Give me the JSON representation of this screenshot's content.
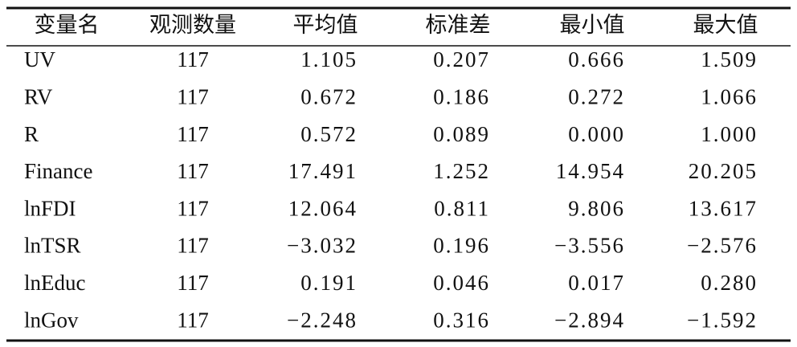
{
  "table": {
    "header": [
      "变量名",
      "观测数量",
      "平均值",
      "标准差",
      "最小值",
      "最大值"
    ],
    "rows": [
      [
        "UV",
        "117",
        "1.105",
        "0.207",
        "0.666",
        "1.509"
      ],
      [
        "RV",
        "117",
        "0.672",
        "0.186",
        "0.272",
        "1.066"
      ],
      [
        "R",
        "117",
        "0.572",
        "0.089",
        "0.000",
        "1.000"
      ],
      [
        "Finance",
        "117",
        "17.491",
        "1.252",
        "14.954",
        "20.205"
      ],
      [
        "lnFDI",
        "117",
        "12.064",
        "0.811",
        "9.806",
        "13.617"
      ],
      [
        "lnTSR",
        "117",
        "−3.032",
        "0.196",
        "−3.556",
        "−2.576"
      ],
      [
        "lnEduc",
        "117",
        "0.191",
        "0.046",
        "0.017",
        "0.280"
      ],
      [
        "lnGov",
        "117",
        "−2.248",
        "0.316",
        "−2.894",
        "−1.592"
      ]
    ]
  }
}
